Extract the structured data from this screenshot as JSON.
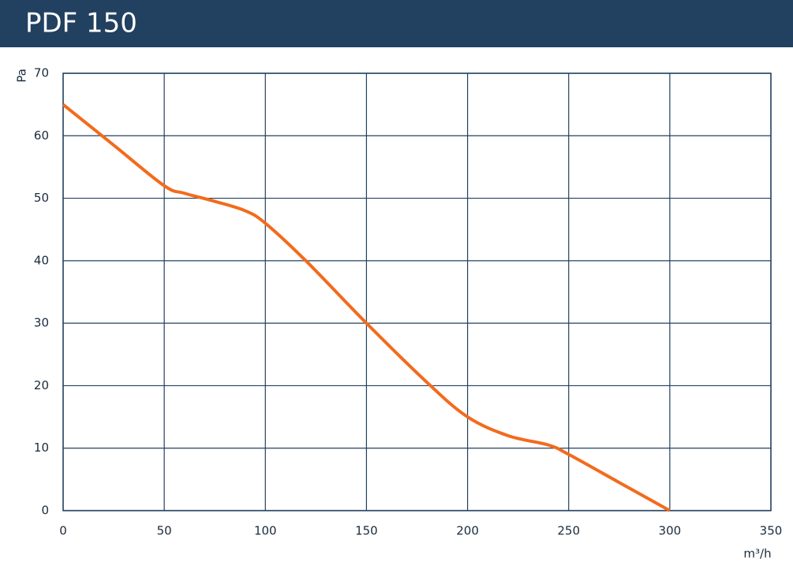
{
  "chart_data": {
    "type": "line",
    "title": "PDF 150",
    "y_label": "Pa",
    "x_label": "m³/h",
    "x": [
      0,
      25,
      50,
      60,
      75,
      90,
      100,
      120,
      150,
      180,
      200,
      220,
      240,
      250,
      275,
      300
    ],
    "series": [
      {
        "name": "PDF 150",
        "color": "#f26b1d",
        "values": [
          65,
          58.5,
          52,
          50.8,
          49.5,
          48,
          46,
          40,
          30,
          20.5,
          15,
          12,
          10.5,
          9,
          4.5,
          0
        ]
      }
    ],
    "xlim": [
      0,
      350
    ],
    "ylim": [
      0,
      70
    ],
    "xticks": [
      0,
      50,
      100,
      150,
      200,
      250,
      300,
      350
    ],
    "yticks": [
      0,
      10,
      20,
      30,
      40,
      50,
      60,
      70
    ],
    "grid": true
  }
}
